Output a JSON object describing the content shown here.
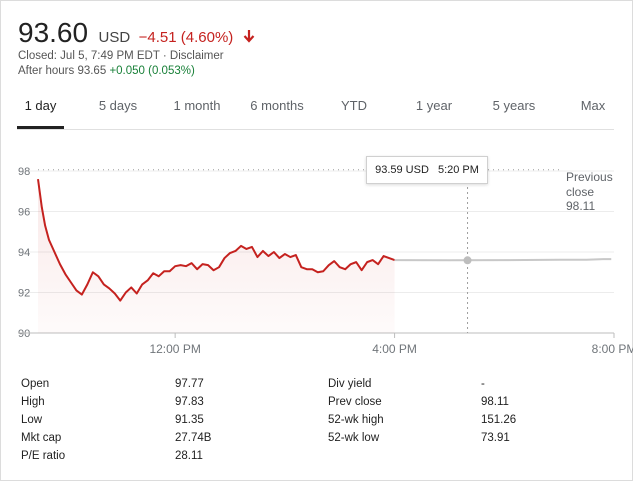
{
  "quote": {
    "price": "93.60",
    "currency": "USD",
    "change": "−4.51 (4.60%)",
    "direction": "down",
    "closed_text": "Closed: Jul 5, 7:49 PM EDT · Disclaimer",
    "after_hours_label": "After hours 93.65",
    "after_hours_change": "+0.050 (0.053%)"
  },
  "tabs": [
    {
      "label": "1 day",
      "active": true
    },
    {
      "label": "5 days",
      "active": false
    },
    {
      "label": "1 month",
      "active": false
    },
    {
      "label": "6 months",
      "active": false
    },
    {
      "label": "YTD",
      "active": false
    },
    {
      "label": "1 year",
      "active": false
    },
    {
      "label": "5 years",
      "active": false
    },
    {
      "label": "Max",
      "active": false
    }
  ],
  "tooltip": {
    "price": "93.59 USD",
    "time": "5:20 PM"
  },
  "previous_close": {
    "line1": "Previous",
    "line2": "close",
    "value": "98.11"
  },
  "colors": {
    "down": "#c5221f",
    "up": "#188038",
    "after_hours_line": "#c8c8c8"
  },
  "chart_data": {
    "type": "line",
    "y_ticks": [
      "98",
      "96",
      "94",
      "92",
      "90"
    ],
    "x_ticks": [
      "12:00 PM",
      "4:00 PM",
      "8:00 PM"
    ],
    "ylim": [
      90,
      98
    ],
    "previous_close": 98.11,
    "grid": true,
    "x_unit": "hours",
    "xlim": [
      9.5,
      20.0
    ],
    "series": [
      {
        "session": "regular",
        "color": "#c5221f",
        "x": [
          9.5,
          9.57,
          9.63,
          9.7,
          9.8,
          9.9,
          10.0,
          10.1,
          10.2,
          10.3,
          10.4,
          10.5,
          10.6,
          10.7,
          10.8,
          10.9,
          11.0,
          11.1,
          11.2,
          11.3,
          11.4,
          11.5,
          11.6,
          11.7,
          11.8,
          11.9,
          12.0,
          12.1,
          12.2,
          12.3,
          12.4,
          12.5,
          12.6,
          12.7,
          12.8,
          12.9,
          13.0,
          13.1,
          13.2,
          13.3,
          13.4,
          13.5,
          13.6,
          13.7,
          13.8,
          13.9,
          14.0,
          14.1,
          14.2,
          14.3,
          14.4,
          14.5,
          14.6,
          14.7,
          14.8,
          14.9,
          15.0,
          15.1,
          15.2,
          15.3,
          15.4,
          15.5,
          15.6,
          15.7,
          15.8,
          15.9,
          16.0
        ],
        "y": [
          97.6,
          96.2,
          95.3,
          94.6,
          94.0,
          93.4,
          92.9,
          92.5,
          92.1,
          91.9,
          92.4,
          93.0,
          92.8,
          92.4,
          92.2,
          91.95,
          91.6,
          92.0,
          92.25,
          91.95,
          92.4,
          92.6,
          92.95,
          92.8,
          93.05,
          93.05,
          93.3,
          93.35,
          93.3,
          93.45,
          93.15,
          93.4,
          93.35,
          93.1,
          93.25,
          93.7,
          93.95,
          94.05,
          94.3,
          94.15,
          94.25,
          93.75,
          94.05,
          93.8,
          94.0,
          93.7,
          93.9,
          93.75,
          93.85,
          93.25,
          93.15,
          93.15,
          93.0,
          93.05,
          93.35,
          93.55,
          93.25,
          93.15,
          93.4,
          93.5,
          93.1,
          93.5,
          93.6,
          93.4,
          93.8,
          93.7,
          93.6
        ]
      },
      {
        "session": "after_hours",
        "color": "#c8c8c8",
        "x": [
          16.0,
          17.0,
          18.0,
          19.0,
          19.5,
          19.8,
          19.95
        ],
        "y": [
          93.6,
          93.59,
          93.6,
          93.62,
          93.62,
          93.65,
          93.65
        ]
      }
    ],
    "hover_point": {
      "x": 17.33,
      "y": 93.59
    }
  },
  "stats": {
    "left": [
      {
        "label": "Open",
        "value": "97.77"
      },
      {
        "label": "High",
        "value": "97.83"
      },
      {
        "label": "Low",
        "value": "91.35"
      },
      {
        "label": "Mkt cap",
        "value": "27.74B"
      },
      {
        "label": "P/E ratio",
        "value": "28.11"
      }
    ],
    "right": [
      {
        "label": "Div yield",
        "value": "-"
      },
      {
        "label": "Prev close",
        "value": "98.11"
      },
      {
        "label": "52-wk high",
        "value": "151.26"
      },
      {
        "label": "52-wk low",
        "value": "73.91"
      }
    ]
  }
}
